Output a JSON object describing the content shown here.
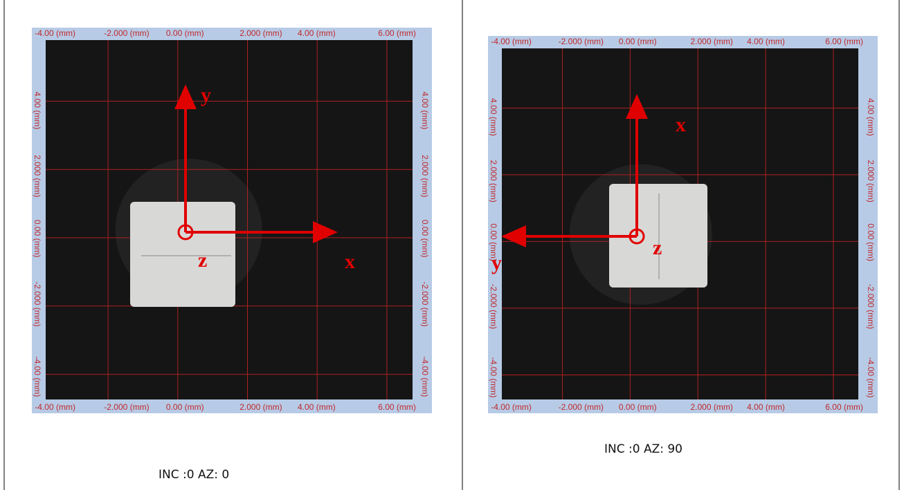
{
  "x_labels": [
    "-4.00 (mm)",
    "-2.000 (mm)",
    "0.00 (mm)",
    "2.000 (mm)",
    "4.00 (mm)",
    "6.00 (mm)"
  ],
  "y_labels": [
    "4.00 (mm)",
    "2.000 (mm)",
    "0.00 (mm)",
    "-2.000 (mm)",
    "-4.00 (mm)"
  ],
  "panels": [
    {
      "axes": {
        "up": "y",
        "right": "x",
        "origin": "z"
      },
      "caption": "INC :0 AZ: 0"
    },
    {
      "axes": {
        "up": "x",
        "left": "y",
        "origin": "z"
      },
      "caption": "INC :0 AZ: 90"
    }
  ]
}
